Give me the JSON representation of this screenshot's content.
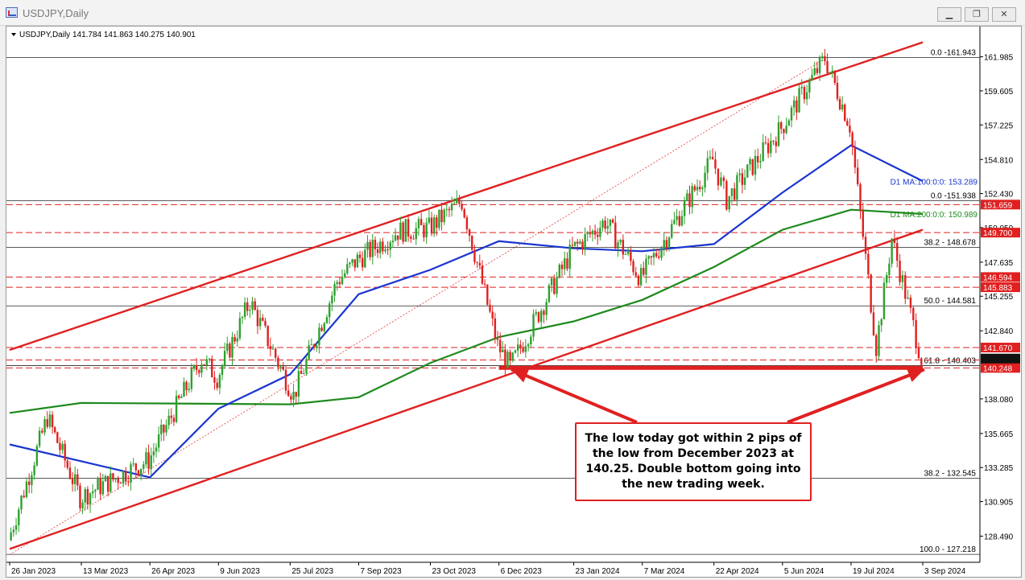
{
  "window": {
    "title": "USDJPY,Daily",
    "buttons": [
      {
        "name": "minimize-button",
        "glyph": "▁"
      },
      {
        "name": "restore-button",
        "glyph": "❐"
      },
      {
        "name": "close-button",
        "glyph": "✕"
      }
    ]
  },
  "header": {
    "symbol": "USDJPY,Daily",
    "ohlc": "141.784 141.863 140.275 140.901"
  },
  "colors": {
    "bull": "#2ea02e",
    "bear": "#e02020",
    "ma100": "#1a35d0",
    "ma200": "#1e8a1e",
    "trend": "#e02020",
    "grid": "#000000",
    "accent": "#e02020",
    "price_bg": "#111111"
  },
  "chart_data": {
    "type": "candlestick",
    "title": "USDJPY,Daily",
    "xlabel": "",
    "ylabel": "",
    "ylim": [
      127.0,
      163.2
    ],
    "grid": false,
    "x_ticks": [
      "26 Jan 2023",
      "13 Mar 2023",
      "26 Apr 2023",
      "9 Jun 2023",
      "25 Jul 2023",
      "7 Sep 2023",
      "23 Oct 2023",
      "6 Dec 2023",
      "23 Jan 2024",
      "7 Mar 2024",
      "22 Apr 2024",
      "5 Jun 2024",
      "19 Jul 2024",
      "3 Sep 2024"
    ],
    "y_ticks": [
      161.985,
      159.605,
      157.225,
      154.81,
      152.43,
      150.05,
      147.635,
      145.255,
      142.84,
      138.08,
      135.665,
      133.285,
      130.905,
      128.49
    ],
    "price_path": [
      [
        "26 Jan 2023",
        128.2
      ],
      [
        "20 Feb 2023",
        136.8
      ],
      [
        "13 Mar 2023",
        131.2
      ],
      [
        "26 Apr 2023",
        133.8
      ],
      [
        "30 May 2023",
        140.9
      ],
      [
        "9 Jun 2023",
        139.6
      ],
      [
        "30 Jun 2023",
        144.9
      ],
      [
        "28 Jul 2023",
        138.3
      ],
      [
        "25 Aug 2023",
        146.3
      ],
      [
        "7 Sep 2023",
        147.8
      ],
      [
        "3 Oct 2023",
        149.8
      ],
      [
        "23 Oct 2023",
        150.0
      ],
      [
        "13 Nov 2023",
        151.9
      ],
      [
        "6 Dec 2023",
        141.8
      ],
      [
        "14 Dec 2023",
        140.3
      ],
      [
        "23 Jan 2024",
        148.5
      ],
      [
        "13 Feb 2024",
        150.5
      ],
      [
        "7 Mar 2024",
        146.5
      ],
      [
        "22 Apr 2024",
        154.8
      ],
      [
        "1 May 2024",
        152.0
      ],
      [
        "5 Jun 2024",
        157.0
      ],
      [
        "3 Jul 2024",
        161.9
      ],
      [
        "19 Jul 2024",
        157.2
      ],
      [
        "5 Aug 2024",
        141.7
      ],
      [
        "15 Aug 2024",
        149.3
      ],
      [
        "3 Sep 2024",
        140.9
      ]
    ],
    "series": [
      {
        "name": "D1 MA:100:0:0: 153.289",
        "path": [
          [
            "26 Jan 2023",
            134.9
          ],
          [
            "26 Apr 2023",
            132.6
          ],
          [
            "9 Jun 2023",
            137.4
          ],
          [
            "25 Jul 2023",
            139.8
          ],
          [
            "7 Sep 2023",
            145.4
          ],
          [
            "23 Oct 2023",
            147.1
          ],
          [
            "6 Dec 2023",
            149.1
          ],
          [
            "23 Jan 2024",
            148.6
          ],
          [
            "7 Mar 2024",
            148.4
          ],
          [
            "22 Apr 2024",
            148.9
          ],
          [
            "5 Jun 2024",
            152.5
          ],
          [
            "19 Jul 2024",
            155.8
          ],
          [
            "3 Sep 2024",
            153.3
          ]
        ]
      },
      {
        "name": "D1 MA:200:0:0: 150.989",
        "path": [
          [
            "26 Jan 2023",
            137.1
          ],
          [
            "13 Mar 2023",
            137.8
          ],
          [
            "25 Jul 2023",
            137.7
          ],
          [
            "7 Sep 2023",
            138.2
          ],
          [
            "23 Oct 2023",
            140.6
          ],
          [
            "6 Dec 2023",
            142.4
          ],
          [
            "23 Jan 2024",
            143.5
          ],
          [
            "7 Mar 2024",
            145.0
          ],
          [
            "22 Apr 2024",
            147.3
          ],
          [
            "5 Jun 2024",
            149.9
          ],
          [
            "19 Jul 2024",
            151.3
          ],
          [
            "3 Sep 2024",
            151.0
          ]
        ]
      }
    ],
    "trendlines": [
      {
        "name": "upper-channel",
        "from": [
          "26 Jan 2023",
          141.5
        ],
        "to": [
          "3 Sep 2024",
          163.0
        ]
      },
      {
        "name": "lower-channel",
        "from": [
          "26 Jan 2023",
          127.6
        ],
        "to": [
          "3 Sep 2024",
          149.9
        ]
      },
      {
        "name": "support",
        "from": [
          "6 Dec 2023",
          140.25
        ],
        "to": [
          "3 Sep 2024",
          140.25
        ]
      }
    ],
    "fib_levels": [
      {
        "label": "0.0 -161.943",
        "value": 161.943
      },
      {
        "label": "0.0 -151.938",
        "value": 151.938
      },
      {
        "label": "38.2 - 148.678",
        "value": 148.678
      },
      {
        "label": "50.0 - 144.581",
        "value": 144.581
      },
      {
        "label": "61.8 - 140.403",
        "value": 140.403
      },
      {
        "label": "38.2 - 132.545",
        "value": 132.545
      },
      {
        "label": "100.0 - 127.218",
        "value": 127.218
      }
    ],
    "horizontal_levels": [
      151.659,
      149.7,
      146.594,
      145.883,
      141.67,
      140.8,
      140.248
    ],
    "price_labels": [
      {
        "value": "151.659",
        "level": 151.659,
        "bg": "#e02020"
      },
      {
        "value": "149.700",
        "level": 149.7,
        "bg": "#e02020"
      },
      {
        "value": "146.594",
        "level": 146.594,
        "bg": "#e02020"
      },
      {
        "value": "145.883",
        "level": 145.883,
        "bg": "#e02020"
      },
      {
        "value": "141.670",
        "level": 141.67,
        "bg": "#e02020"
      },
      {
        "value": "140.800",
        "level": 140.8,
        "bg": "#e02020"
      },
      {
        "value": "140.248",
        "level": 140.248,
        "bg": "#e02020"
      }
    ],
    "ma_labels": [
      {
        "text": "D1 MA:100:0:0: 153.289",
        "color": "#1a35d0"
      },
      {
        "text": "D1 MA:200:0:0: 150.989",
        "color": "#1e8a1e"
      }
    ]
  },
  "annotation": {
    "text": "The low today got within 2 pips of the low from December 2023 at 140.25. Double bottom going into the new trading week."
  }
}
